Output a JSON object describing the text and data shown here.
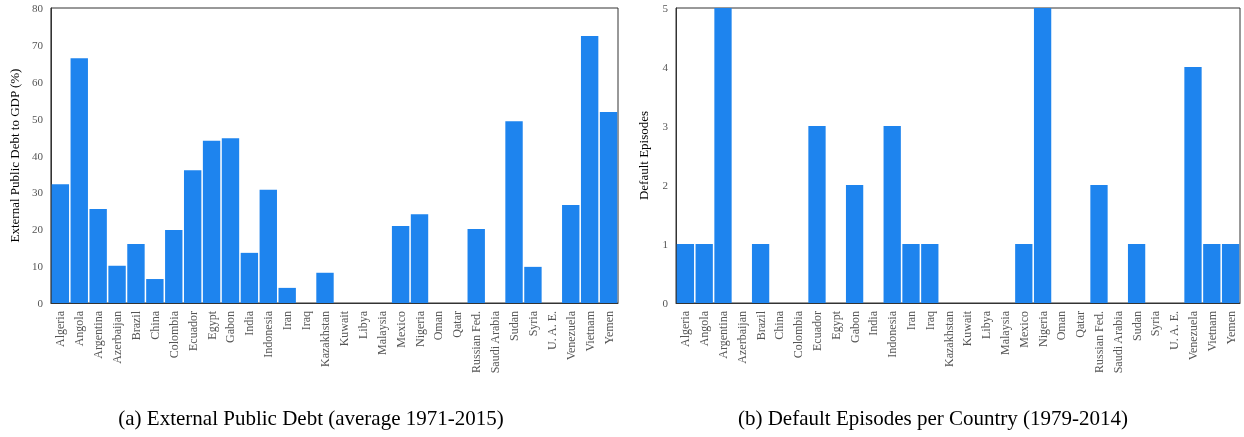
{
  "chart_data": [
    {
      "type": "bar",
      "title": "(a) External Public Debt (average 1971-2015)",
      "ylabel": "External Public Debt to GDP (%)",
      "categories": [
        "Algeria",
        "Angola",
        "Argentina",
        "Azerbaijan",
        "Brazil",
        "China",
        "Colombia",
        "Ecuador",
        "Egypt",
        "Gabon",
        "India",
        "Indonesia",
        "Iran",
        "Iraq",
        "Kazakhstan",
        "Kuwait",
        "Libya",
        "Malaysia",
        "Mexico",
        "Nigeria",
        "Oman",
        "Qatar",
        "Russian Fed.",
        "Saudi Arabia",
        "Sudan",
        "Syria",
        "U. A. E.",
        "Venezuela",
        "Vietnam",
        "Yemen"
      ],
      "series": [
        {
          "color": "#1e84ee",
          "values": [
            32.2,
            66.4,
            25.5,
            10.1,
            16.0,
            6.5,
            19.8,
            36.0,
            44.0,
            44.7,
            13.6,
            30.7,
            4.1,
            0,
            8.2,
            0,
            0,
            0,
            20.9,
            24.1,
            0,
            0,
            20.1,
            0,
            49.3,
            9.8,
            0,
            26.6,
            72.4,
            51.8
          ]
        }
      ],
      "ylim": [
        0,
        80
      ],
      "yticks": [
        0,
        10,
        20,
        30,
        40,
        50,
        60,
        70,
        80
      ],
      "grid": false
    },
    {
      "type": "bar",
      "title": "(b) Default Episodes per Country (1979-2014)",
      "ylabel": "Default Episodes",
      "categories": [
        "Algeria",
        "Angola",
        "Argentina",
        "Azerbaijan",
        "Brazil",
        "China",
        "Colombia",
        "Ecuador",
        "Egypt",
        "Gabon",
        "India",
        "Indonesia",
        "Iran",
        "Iraq",
        "Kazakhstan",
        "Kuwait",
        "Libya",
        "Malaysia",
        "Mexico",
        "Nigeria",
        "Oman",
        "Qatar",
        "Russian Fed.",
        "Saudi Arabia",
        "Sudan",
        "Syria",
        "U. A. E.",
        "Venezuela",
        "Vietnam",
        "Yemen"
      ],
      "series": [
        {
          "color": "#1e84ee",
          "values": [
            1,
            1,
            5,
            0,
            1,
            0,
            0,
            3,
            0,
            2,
            0,
            3,
            1,
            1,
            0,
            0,
            0,
            0,
            1,
            5,
            0,
            0,
            2,
            0,
            1,
            0,
            0,
            4,
            1,
            1
          ]
        }
      ],
      "ylim": [
        0,
        5
      ],
      "yticks": [
        0,
        1,
        2,
        3,
        4,
        5
      ],
      "grid": false
    }
  ]
}
